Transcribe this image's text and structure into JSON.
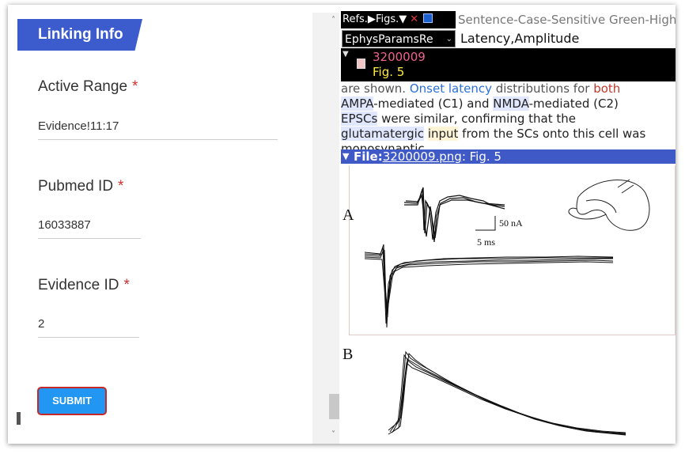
{
  "form": {
    "title": "Linking Info",
    "required_mark": "*",
    "fields": [
      {
        "label": "Active Range",
        "value": "Evidence!11:17"
      },
      {
        "label": "Pubmed ID",
        "value": "16033887"
      },
      {
        "label": "Evidence ID",
        "value": "2"
      }
    ],
    "submit_label": "SUBMIT"
  },
  "viewer": {
    "toolbar": {
      "refs_label": "Refs.▶",
      "figs_label": "Figs.▼",
      "close_glyph": "✕",
      "search_text": "Sentence-Case-Sensitive Green-High"
    },
    "select_value": "EphysParamsRe",
    "params_text": "Latency,Amplitude",
    "popup": {
      "pmid": "3200009",
      "fig": "Fig. 5"
    },
    "text": {
      "s1": "are shown. ",
      "s2": "Onset latency",
      "s3": " distributions for ",
      "s4": "both",
      "s5": "AMPA",
      "s6": "-mediated (C1) and ",
      "s7": "NMDA",
      "s8": "-mediated (C2)",
      "s9": "EPSCs",
      "s10": " were similar, confirming that the",
      "s11": "glutamatergic",
      "s12": " ",
      "s13": "input",
      "s14": " from the SCs onto this cell was",
      "s15": "monosynaptic."
    },
    "file_bar": {
      "prefix": "File:",
      "filename": "3200009.png",
      "suffix": ": Fig. 5"
    },
    "figure": {
      "panel_a": "A",
      "panel_b": "B",
      "scale_current": "50 nA",
      "scale_time": "5 ms"
    }
  },
  "colors": {
    "title_tab": "#3c5ccd",
    "required": "#d32f2f",
    "submit_bg": "#2196f3",
    "submit_border": "#c62828",
    "file_bar": "#3f59c6",
    "pmid": "#f06292",
    "fig_label": "#ffeb3b"
  },
  "icons": [
    "save-icon",
    "close-icon",
    "grid-icon",
    "chevron-down-icon",
    "disclosure-triangle-icon"
  ]
}
